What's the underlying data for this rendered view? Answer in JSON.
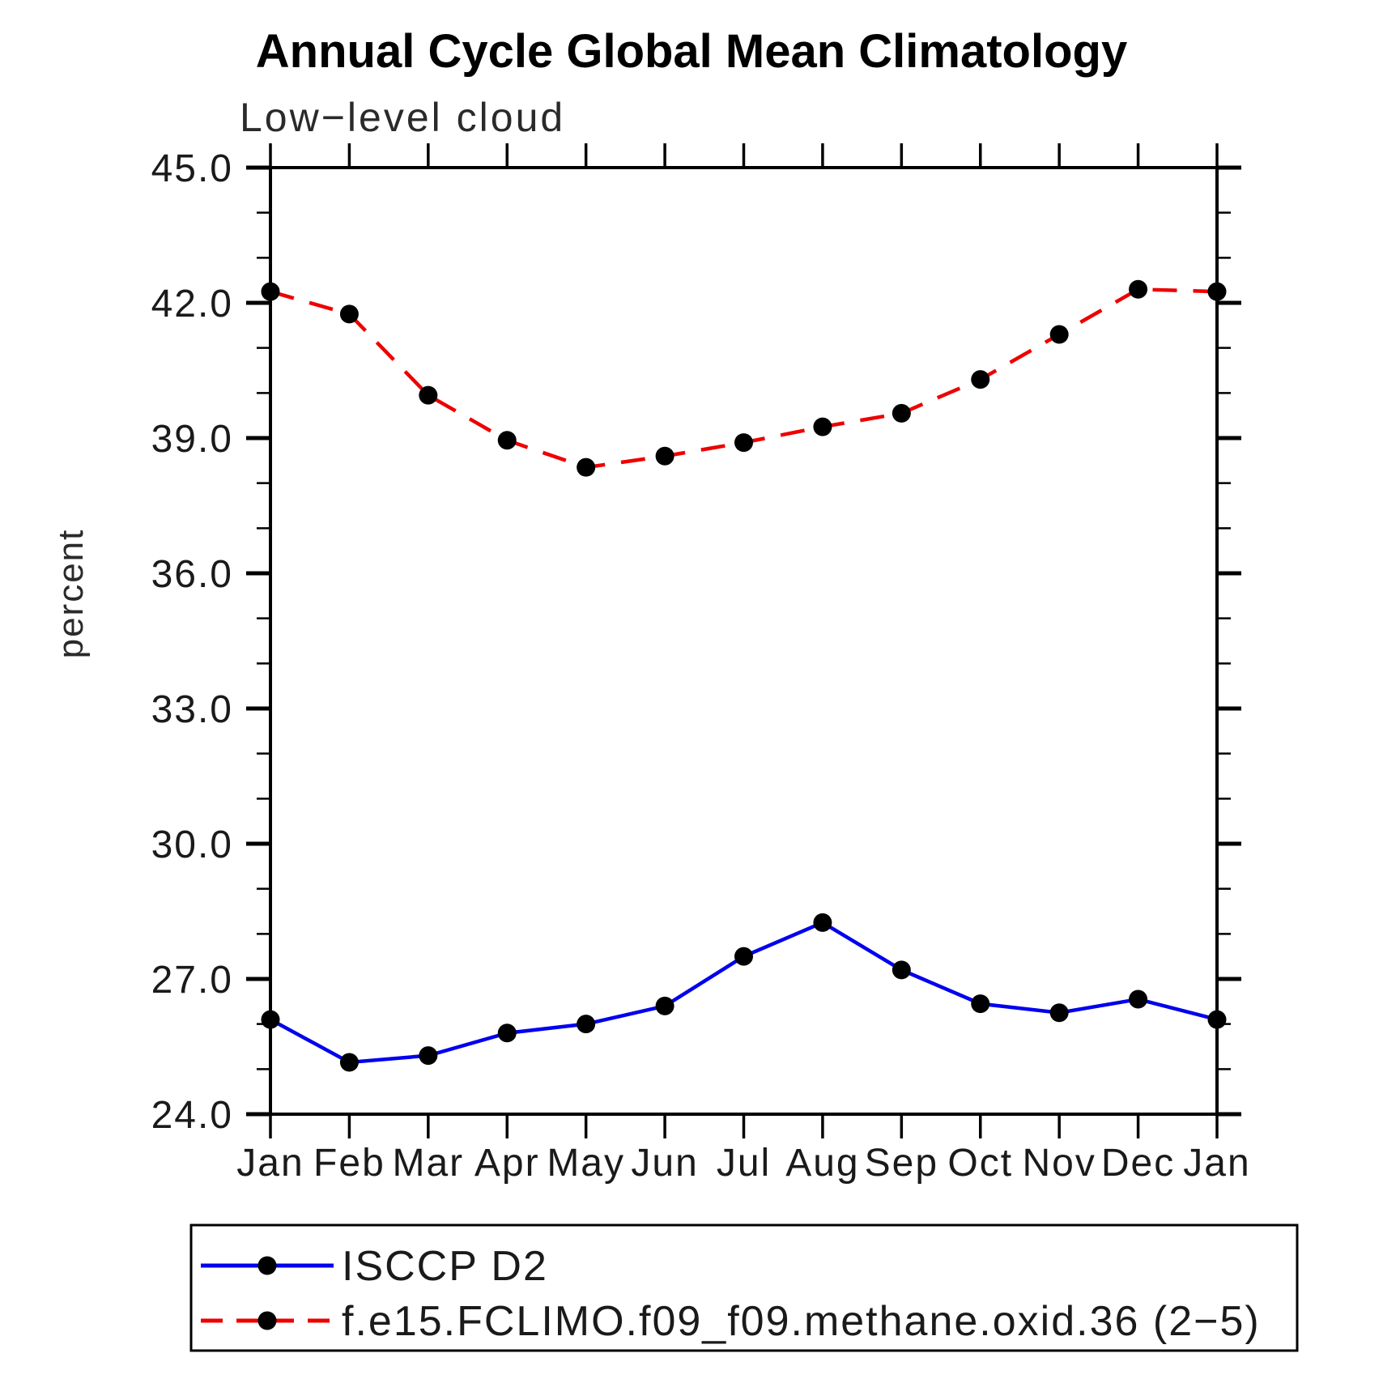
{
  "header": {
    "title": "Annual Cycle Global Mean Climatology",
    "subtitle": "Low−level cloud"
  },
  "chart_data": {
    "type": "line",
    "title": "Annual Cycle Global Mean Climatology",
    "subtitle": "Low−level cloud",
    "xlabel": "",
    "ylabel": "percent",
    "ylim": [
      24.0,
      45.0
    ],
    "ytick_major_interval": 3.0,
    "ytick_minor_interval": 1.0,
    "ytick_labels": [
      "45.0",
      "42.0",
      "39.0",
      "36.0",
      "33.0",
      "30.0",
      "27.0",
      "24.0"
    ],
    "x_categories": [
      "Jan",
      "Feb",
      "Mar",
      "Apr",
      "May",
      "Jun",
      "Jul",
      "Aug",
      "Sep",
      "Oct",
      "Nov",
      "Dec",
      "Jan"
    ],
    "grid": false,
    "legend_position": "bottom-boxed",
    "axis_color": "#000000",
    "marker_color": "#000000",
    "series": [
      {
        "name": "ISCCP D2",
        "color": "#0000ee",
        "style": "solid",
        "marker": "filled-circle",
        "values": [
          26.1,
          25.15,
          25.3,
          25.8,
          26.0,
          26.4,
          27.5,
          28.25,
          27.2,
          26.45,
          26.25,
          26.55,
          26.1
        ]
      },
      {
        "name": "f.e15.FCLIMO.f09_f09.methane.oxid.36 (2−5)",
        "color": "#ee0000",
        "style": "dashed",
        "marker": "filled-circle",
        "values": [
          42.25,
          41.75,
          39.95,
          38.95,
          38.35,
          38.6,
          38.9,
          39.25,
          39.55,
          40.3,
          41.3,
          42.3,
          42.25
        ]
      }
    ]
  }
}
